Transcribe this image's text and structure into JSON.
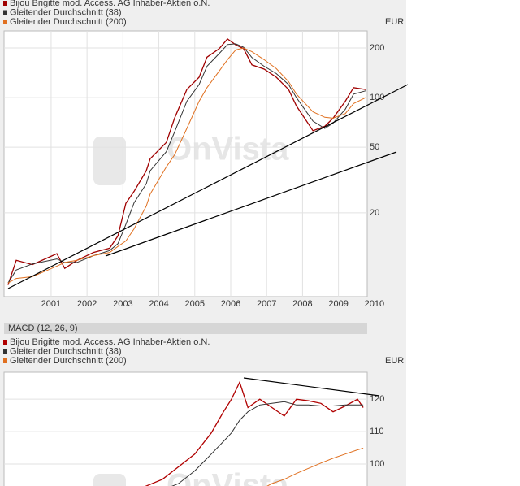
{
  "chart_data": [
    {
      "type": "line",
      "log_y": true,
      "grid": true,
      "unit": "EUR",
      "watermark": "OnVista",
      "x": [
        1999.8,
        2000.03,
        2000.48,
        2001.16,
        2001.38,
        2001.72,
        2002.18,
        2002.63,
        2002.86,
        2003.08,
        2003.31,
        2003.65,
        2003.76,
        2004.21,
        2004.44,
        2004.78,
        2005.12,
        2005.34,
        2005.68,
        2005.91,
        2006.14,
        2006.36,
        2006.59,
        2006.93,
        2007.27,
        2007.61,
        2007.83,
        2008.29,
        2008.62,
        2008.85,
        2009.19,
        2009.42,
        2009.76
      ],
      "series": [
        {
          "name": "Bijou Brigitte mod. Access. AG Inhaber-Aktien o.N.",
          "color": "#a00000",
          "values": [
            7.3,
            10.3,
            9.7,
            11.3,
            9.2,
            10.3,
            11.5,
            12.2,
            14.5,
            22.8,
            27,
            36,
            42.6,
            53.5,
            75.3,
            112,
            133,
            176,
            198,
            227,
            209,
            198,
            158,
            149,
            133,
            112,
            89,
            63,
            67,
            75,
            95,
            115,
            112
          ]
        },
        {
          "name": "Gleitender Durchschnitt (38)",
          "color": "#333333",
          "values": [
            7.5,
            9,
            9.8,
            10.5,
            10,
            10,
            11,
            11.8,
            13,
            17,
            23,
            30,
            36,
            47,
            62,
            95,
            120,
            155,
            185,
            210,
            212,
            202,
            175,
            155,
            140,
            120,
            100,
            72,
            65,
            70,
            85,
            105,
            110
          ]
        },
        {
          "name": "Gleitender Durchschnitt (200)",
          "color": "#e07020",
          "values": [
            7.5,
            8,
            8.2,
            9.5,
            10,
            10.3,
            11,
            11.5,
            12.5,
            13.5,
            16,
            22,
            26,
            38,
            45,
            65,
            95,
            115,
            145,
            170,
            195,
            200,
            190,
            170,
            150,
            125,
            105,
            82,
            76,
            75,
            80,
            92,
            100
          ]
        }
      ],
      "xlim": [
        1999.69,
        2009.8
      ],
      "xticks": [
        2001,
        2002,
        2003,
        2004,
        2005,
        2006,
        2007,
        2008,
        2009,
        2010
      ],
      "ylim": [
        6.2,
        254
      ],
      "yticks": [
        20,
        50,
        100,
        200
      ]
    },
    {
      "type": "line",
      "log_y": false,
      "grid": true,
      "unit": "EUR",
      "watermark": "OnVista",
      "header": "MACD (12, 26, 9)",
      "x": [
        2003.53,
        2004.1,
        2004.55,
        2005.0,
        2005.46,
        2005.8,
        2006.02,
        2006.25,
        2006.48,
        2006.81,
        2007.15,
        2007.49,
        2007.83,
        2008.17,
        2008.51,
        2008.85,
        2009.19,
        2009.53,
        2009.69
      ],
      "series": [
        {
          "name": "Bijou Brigitte mod. Access. AG Inhaber-Aktien o.N.",
          "color": "#b00000",
          "values": [
            92.7,
            95.3,
            99.2,
            103.1,
            109.6,
            116.1,
            120,
            125.2,
            117.4,
            120,
            117.4,
            114.8,
            120,
            119.5,
            118.7,
            116.1,
            117.9,
            120,
            117.4
          ]
        },
        {
          "name": "Gleitender Durchschnitt (38)",
          "color": "#333333",
          "values": [
            null,
            92,
            94,
            97.9,
            103.1,
            107,
            109.6,
            113.5,
            116.1,
            118.2,
            118.7,
            119.2,
            118.2,
            118.2,
            117.9,
            117.9,
            118.2,
            118.2,
            118.2
          ]
        },
        {
          "name": "Gleitender Durchschnitt (200)",
          "color": "#e07020",
          "values": [
            null,
            null,
            null,
            null,
            null,
            null,
            null,
            null,
            null,
            92,
            94,
            95.3,
            97.1,
            98.7,
            100.3,
            101.8,
            103.1,
            104.4,
            104.9
          ]
        }
      ],
      "xlim": [
        1999.69,
        2009.8
      ],
      "ylim": [
        92,
        128.3
      ],
      "yticks": [
        100,
        110,
        120
      ]
    }
  ]
}
